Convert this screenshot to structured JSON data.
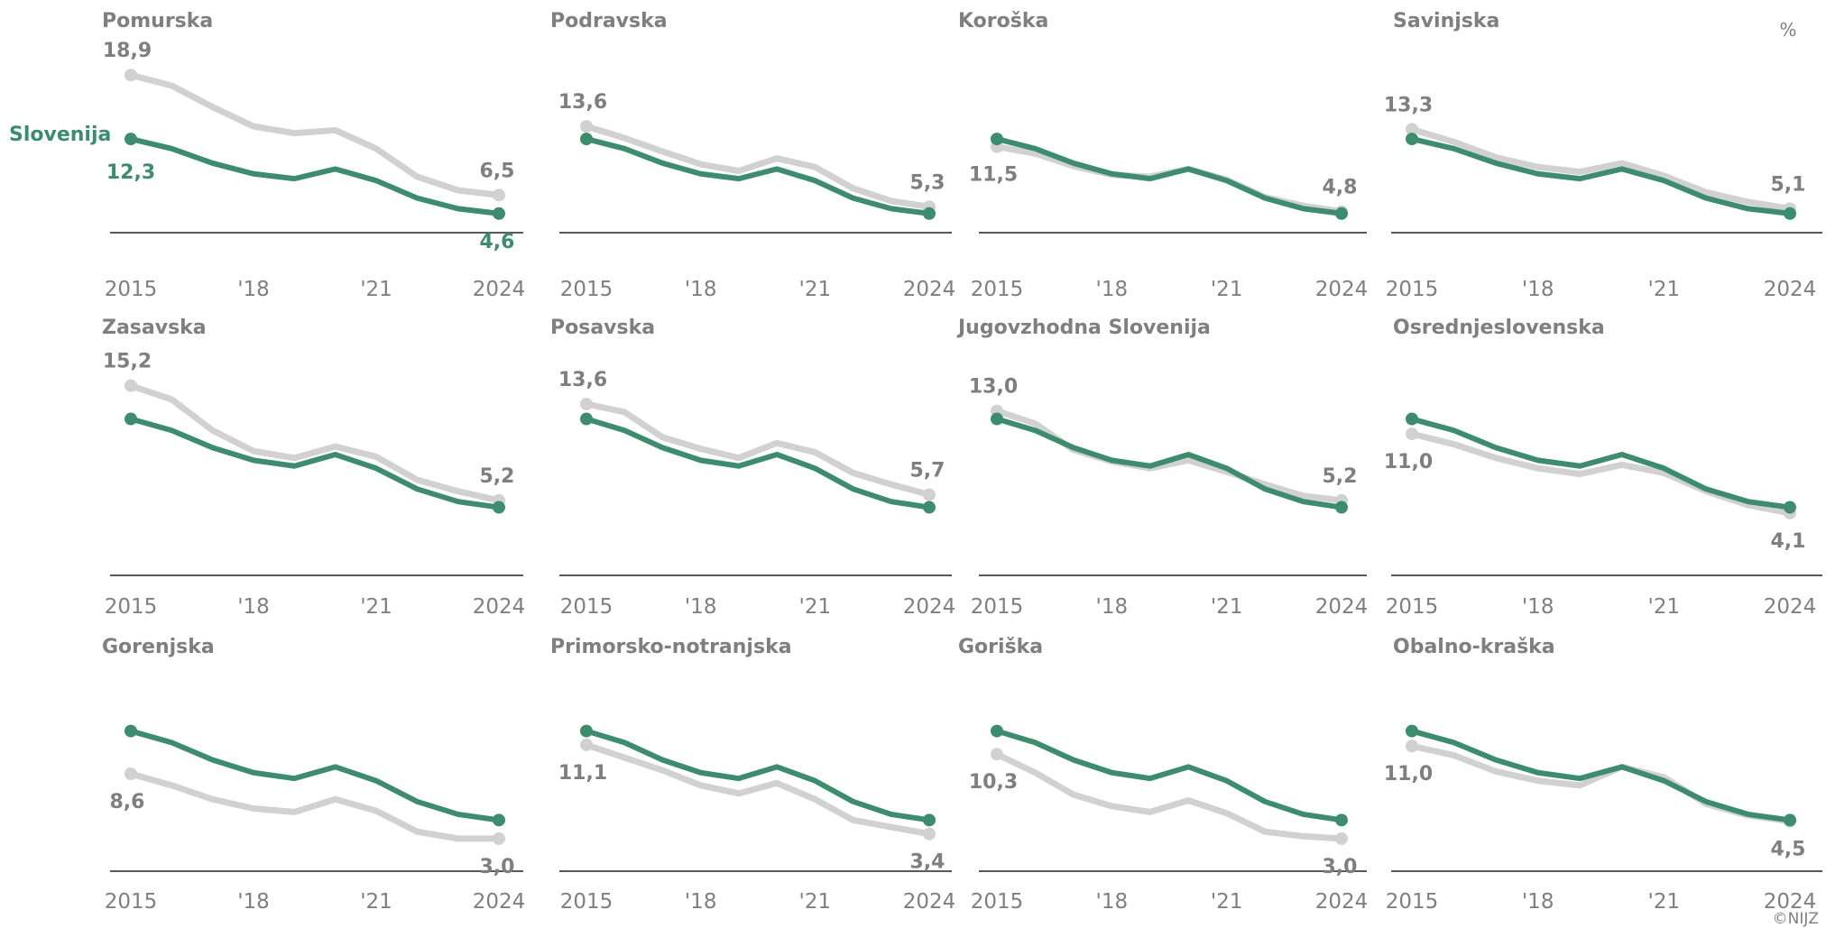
{
  "unit": "%",
  "credit": "©NIJZ",
  "national_label": "Slovenija",
  "colors": {
    "national": "#3d8c6e",
    "region": "#d1d1d1",
    "text": "#7f7f7f",
    "axis": "#595959"
  },
  "chart_data": {
    "type": "line",
    "x": [
      2015,
      2016,
      2017,
      2018,
      2019,
      2020,
      2021,
      2022,
      2023,
      2024
    ],
    "x_tick_labels": [
      "2015",
      "'18",
      "'21",
      "2024"
    ],
    "national": {
      "name": "Slovenija",
      "values": [
        12.3,
        11.3,
        9.8,
        8.7,
        8.2,
        9.2,
        8.0,
        6.2,
        5.1,
        4.6
      ],
      "label_first": "12,3",
      "label_last": "4,6"
    },
    "panels": [
      {
        "title": "Pomurska",
        "values": [
          18.9,
          17.8,
          15.6,
          13.6,
          12.9,
          13.2,
          11.3,
          8.4,
          7.0,
          6.5
        ],
        "label_first": "18,9",
        "label_last": "6,5"
      },
      {
        "title": "Podravska",
        "values": [
          13.6,
          12.4,
          11.0,
          9.7,
          9.0,
          10.3,
          9.4,
          7.2,
          5.9,
          5.3
        ],
        "label_first": "13,6",
        "label_last": "5,3"
      },
      {
        "title": "Koroška",
        "values": [
          11.5,
          10.8,
          9.5,
          8.6,
          8.4,
          9.2,
          8.1,
          6.3,
          5.4,
          4.8
        ],
        "label_first": "11,5",
        "label_last": "4,8"
      },
      {
        "title": "Savinjska",
        "values": [
          13.3,
          12.0,
          10.4,
          9.4,
          8.9,
          9.8,
          8.5,
          6.8,
          5.8,
          5.1
        ],
        "label_first": "13,3",
        "label_last": "5,1"
      },
      {
        "title": "Zasavska",
        "values": [
          15.2,
          14.0,
          11.3,
          9.5,
          8.9,
          9.9,
          9.0,
          7.0,
          6.0,
          5.2
        ],
        "label_first": "15,2",
        "label_last": "5,2"
      },
      {
        "title": "Posavska",
        "values": [
          13.6,
          12.9,
          10.7,
          9.7,
          8.9,
          10.2,
          9.4,
          7.6,
          6.6,
          5.7
        ],
        "label_first": "13,6",
        "label_last": "5,7"
      },
      {
        "title": "Jugovzhodna Slovenija",
        "values": [
          13.0,
          11.9,
          9.6,
          8.6,
          8.0,
          8.7,
          7.7,
          6.6,
          5.6,
          5.2
        ],
        "label_first": "13,0",
        "label_last": "5,2"
      },
      {
        "title": "Osrednjeslovenska",
        "values": [
          11.0,
          10.1,
          8.9,
          8.0,
          7.5,
          8.3,
          7.6,
          6.0,
          4.8,
          4.1
        ],
        "label_first": "11,0",
        "label_last": "4,1"
      },
      {
        "title": "Gorenjska",
        "values": [
          8.6,
          7.6,
          6.4,
          5.6,
          5.3,
          6.4,
          5.4,
          3.6,
          3.0,
          3.0
        ],
        "label_first": "8,6",
        "label_last": "3,0"
      },
      {
        "title": "Primorsko-notranjska",
        "values": [
          11.1,
          10.0,
          8.9,
          7.6,
          6.9,
          7.8,
          6.4,
          4.6,
          4.0,
          3.4
        ],
        "label_first": "11,1",
        "label_last": "3,4"
      },
      {
        "title": "Goriška",
        "values": [
          10.3,
          8.7,
          6.8,
          5.8,
          5.3,
          6.3,
          5.2,
          3.6,
          3.2,
          3.0
        ],
        "label_first": "10,3",
        "label_last": "3,0"
      },
      {
        "title": "Obalno-kraška",
        "values": [
          11.0,
          10.2,
          8.8,
          8.0,
          7.6,
          9.2,
          8.3,
          6.0,
          5.0,
          4.5
        ],
        "label_first": "11,0",
        "label_last": "4,5"
      }
    ]
  }
}
